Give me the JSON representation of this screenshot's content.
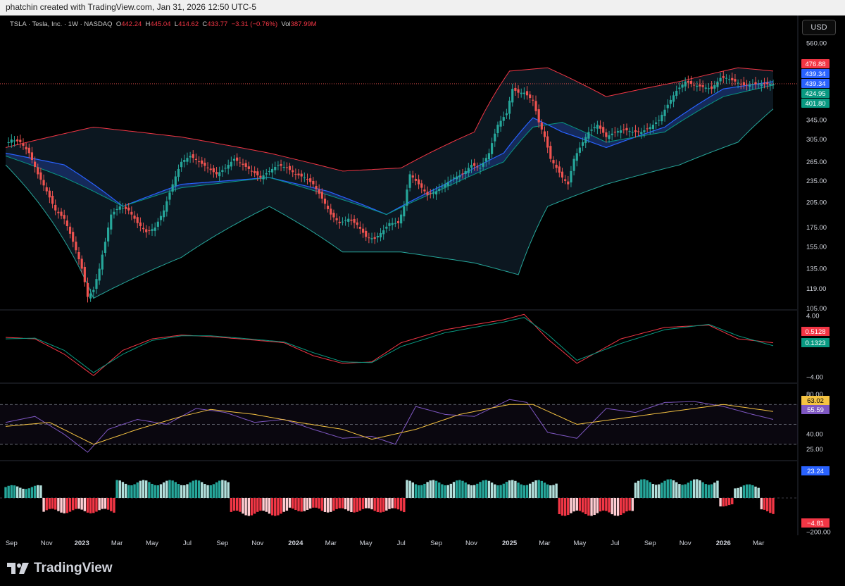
{
  "header": {
    "caption": "phatchin created with TradingView.com, Jan 31, 2026 12:50 UTC-5"
  },
  "legend": {
    "symbol": "TSLA · Tesla, Inc. · 1W · NASDAQ",
    "o_label": "O",
    "o": "442.24",
    "h_label": "H",
    "h": "445.04",
    "l_label": "L",
    "l": "414.62",
    "c_label": "C",
    "c": "433.77",
    "change": "−3.31 (−0.76%)",
    "vol_label": "Vol",
    "vol": "387.99M"
  },
  "currency_button": "USD",
  "footer": {
    "brand": "TradingView"
  },
  "colors": {
    "up": "#26a69a",
    "down": "#ef5350",
    "bb_upper": "#f23645",
    "bb_lower": "#26a69a",
    "fast_ma": "#2962ff",
    "macd": "#f23645",
    "signal": "#089981",
    "rsi": "#7e57c2",
    "rsi_ma": "#f5c342"
  },
  "chart_data": [
    {
      "type": "candlestick",
      "panel": "price",
      "y_scale": "log",
      "ylim": [
        105,
        600
      ],
      "y_ticks": [
        "560.00",
        "345.00",
        "305.00",
        "265.00",
        "235.00",
        "205.00",
        "175.00",
        "155.00",
        "135.00",
        "119.00",
        "105.00"
      ],
      "x_ticks": [
        "Sep",
        "Nov",
        "2023",
        "Mar",
        "May",
        "Jul",
        "Sep",
        "Nov",
        "2024",
        "Mar",
        "May",
        "Jul",
        "Sep",
        "Nov",
        "2025",
        "Mar",
        "May",
        "Jul",
        "Sep",
        "Nov",
        "2026",
        "Mar"
      ],
      "price_labels": [
        {
          "value": "476.88",
          "color": "#f23645"
        },
        {
          "value": "439.34",
          "color": "#2962ff"
        },
        {
          "value": "439.34",
          "color": "#2962ff"
        },
        {
          "value": "424.95",
          "color": "#089981"
        },
        {
          "value": "401.80",
          "color": "#089981"
        }
      ],
      "close_keypoints": [
        [
          0,
          295
        ],
        [
          2,
          305
        ],
        [
          5,
          300
        ],
        [
          8,
          280
        ],
        [
          11,
          245
        ],
        [
          14,
          220
        ],
        [
          17,
          195
        ],
        [
          20,
          185
        ],
        [
          23,
          160
        ],
        [
          26,
          135
        ],
        [
          28,
          113
        ],
        [
          30,
          118
        ],
        [
          32,
          135
        ],
        [
          34,
          160
        ],
        [
          36,
          190
        ],
        [
          39,
          200
        ],
        [
          42,
          195
        ],
        [
          45,
          180
        ],
        [
          48,
          170
        ],
        [
          51,
          175
        ],
        [
          54,
          195
        ],
        [
          57,
          230
        ],
        [
          60,
          265
        ],
        [
          63,
          275
        ],
        [
          66,
          265
        ],
        [
          69,
          255
        ],
        [
          72,
          245
        ],
        [
          75,
          255
        ],
        [
          78,
          270
        ],
        [
          81,
          260
        ],
        [
          84,
          250
        ],
        [
          87,
          240
        ],
        [
          90,
          250
        ],
        [
          93,
          260
        ],
        [
          96,
          255
        ],
        [
          99,
          245
        ],
        [
          102,
          240
        ],
        [
          105,
          230
        ],
        [
          108,
          210
        ],
        [
          111,
          190
        ],
        [
          114,
          180
        ],
        [
          117,
          185
        ],
        [
          120,
          178
        ],
        [
          123,
          165
        ],
        [
          126,
          163
        ],
        [
          129,
          172
        ],
        [
          131,
          180
        ],
        [
          134,
          180
        ],
        [
          136,
          200
        ],
        [
          138,
          245
        ],
        [
          141,
          230
        ],
        [
          144,
          215
        ],
        [
          147,
          220
        ],
        [
          150,
          230
        ],
        [
          153,
          240
        ],
        [
          156,
          245
        ],
        [
          159,
          260
        ],
        [
          162,
          255
        ],
        [
          165,
          280
        ],
        [
          168,
          335
        ],
        [
          171,
          360
        ],
        [
          173,
          420
        ],
        [
          175,
          410
        ],
        [
          177,
          410
        ],
        [
          180,
          390
        ],
        [
          182,
          340
        ],
        [
          184,
          310
        ],
        [
          186,
          270
        ],
        [
          188,
          255
        ],
        [
          190,
          240
        ],
        [
          192,
          230
        ],
        [
          194,
          270
        ],
        [
          196,
          290
        ],
        [
          199,
          320
        ],
        [
          202,
          335
        ],
        [
          205,
          310
        ],
        [
          208,
          320
        ],
        [
          211,
          325
        ],
        [
          214,
          320
        ],
        [
          217,
          320
        ],
        [
          220,
          330
        ],
        [
          223,
          345
        ],
        [
          226,
          380
        ],
        [
          229,
          415
        ],
        [
          232,
          440
        ],
        [
          235,
          430
        ],
        [
          238,
          425
        ],
        [
          241,
          420
        ],
        [
          244,
          450
        ],
        [
          246,
          450
        ],
        [
          249,
          440
        ],
        [
          252,
          430
        ],
        [
          255,
          433
        ]
      ],
      "bollinger_upper_keypoints": [
        [
          0,
          290
        ],
        [
          30,
          330
        ],
        [
          60,
          310
        ],
        [
          90,
          280
        ],
        [
          115,
          250
        ],
        [
          135,
          255
        ],
        [
          160,
          320
        ],
        [
          172,
          470
        ],
        [
          185,
          480
        ],
        [
          205,
          400
        ],
        [
          230,
          440
        ],
        [
          250,
          480
        ],
        [
          262,
          470
        ]
      ],
      "bollinger_lower_keypoints": [
        [
          0,
          260
        ],
        [
          30,
          112
        ],
        [
          60,
          145
        ],
        [
          90,
          200
        ],
        [
          115,
          150
        ],
        [
          135,
          150
        ],
        [
          160,
          140
        ],
        [
          175,
          130
        ],
        [
          185,
          200
        ],
        [
          205,
          230
        ],
        [
          230,
          260
        ],
        [
          250,
          300
        ],
        [
          262,
          370
        ]
      ],
      "fast_ma_keypoints": [
        [
          0,
          280
        ],
        [
          20,
          260
        ],
        [
          40,
          200
        ],
        [
          60,
          230
        ],
        [
          90,
          240
        ],
        [
          110,
          220
        ],
        [
          130,
          190
        ],
        [
          150,
          230
        ],
        [
          170,
          280
        ],
        [
          180,
          350
        ],
        [
          190,
          320
        ],
        [
          205,
          290
        ],
        [
          225,
          330
        ],
        [
          245,
          420
        ],
        [
          262,
          440
        ]
      ],
      "slow_ma_keypoints": [
        [
          0,
          275
        ],
        [
          20,
          240
        ],
        [
          40,
          200
        ],
        [
          60,
          225
        ],
        [
          90,
          240
        ],
        [
          110,
          215
        ],
        [
          130,
          190
        ],
        [
          150,
          225
        ],
        [
          170,
          265
        ],
        [
          180,
          330
        ],
        [
          190,
          340
        ],
        [
          205,
          300
        ],
        [
          225,
          320
        ],
        [
          245,
          400
        ],
        [
          262,
          430
        ]
      ]
    },
    {
      "type": "line",
      "panel": "macd",
      "ylim": [
        -4.6,
        4.6
      ],
      "y_ticks": [
        "4.00",
        "−4.00"
      ],
      "series": [
        {
          "name": "MACD",
          "color": "#f23645",
          "keypoints": [
            [
              0,
              1.2
            ],
            [
              10,
              1.0
            ],
            [
              20,
              -1.0
            ],
            [
              30,
              -3.8
            ],
            [
              40,
              -0.5
            ],
            [
              50,
              1.0
            ],
            [
              60,
              1.5
            ],
            [
              70,
              1.3
            ],
            [
              80,
              1.0
            ],
            [
              95,
              0.5
            ],
            [
              105,
              -1.2
            ],
            [
              115,
              -2.2
            ],
            [
              125,
              -2.0
            ],
            [
              135,
              0.5
            ],
            [
              150,
              2.2
            ],
            [
              170,
              3.5
            ],
            [
              177,
              4.2
            ],
            [
              185,
              1.0
            ],
            [
              195,
              -2.2
            ],
            [
              210,
              1.0
            ],
            [
              225,
              2.5
            ],
            [
              240,
              2.8
            ],
            [
              250,
              1.0
            ],
            [
              262,
              0.5
            ]
          ]
        },
        {
          "name": "Signal",
          "color": "#089981",
          "keypoints": [
            [
              0,
              1.0
            ],
            [
              10,
              1.1
            ],
            [
              20,
              -0.5
            ],
            [
              30,
              -3.4
            ],
            [
              40,
              -1.0
            ],
            [
              50,
              0.8
            ],
            [
              60,
              1.4
            ],
            [
              70,
              1.4
            ],
            [
              80,
              1.1
            ],
            [
              95,
              0.6
            ],
            [
              105,
              -0.8
            ],
            [
              115,
              -2.0
            ],
            [
              125,
              -2.1
            ],
            [
              135,
              0.0
            ],
            [
              150,
              1.8
            ],
            [
              170,
              3.2
            ],
            [
              177,
              3.8
            ],
            [
              185,
              1.6
            ],
            [
              195,
              -1.8
            ],
            [
              210,
              0.4
            ],
            [
              225,
              2.2
            ],
            [
              240,
              2.9
            ],
            [
              250,
              1.4
            ],
            [
              262,
              0.1
            ]
          ]
        }
      ],
      "labels": [
        {
          "value": "0.5128",
          "color": "#f23645"
        },
        {
          "value": "0.1323",
          "color": "#089981"
        }
      ]
    },
    {
      "type": "line",
      "panel": "rsi",
      "ylim": [
        15,
        90
      ],
      "y_ticks": [
        "80.00",
        "40.00",
        "25.00"
      ],
      "guides": [
        70,
        50,
        30
      ],
      "series": [
        {
          "name": "RSI",
          "color": "#7e57c2",
          "keypoints": [
            [
              0,
              52
            ],
            [
              10,
              58
            ],
            [
              20,
              40
            ],
            [
              28,
              22
            ],
            [
              35,
              45
            ],
            [
              45,
              55
            ],
            [
              55,
              50
            ],
            [
              65,
              66
            ],
            [
              75,
              62
            ],
            [
              85,
              52
            ],
            [
              95,
              55
            ],
            [
              105,
              45
            ],
            [
              115,
              36
            ],
            [
              125,
              38
            ],
            [
              133,
              30
            ],
            [
              140,
              68
            ],
            [
              150,
              60
            ],
            [
              160,
              58
            ],
            [
              172,
              75
            ],
            [
              178,
              72
            ],
            [
              185,
              42
            ],
            [
              195,
              36
            ],
            [
              205,
              66
            ],
            [
              215,
              62
            ],
            [
              225,
              72
            ],
            [
              235,
              73
            ],
            [
              245,
              68
            ],
            [
              255,
              60
            ],
            [
              262,
              55
            ]
          ]
        },
        {
          "name": "RSI MA",
          "color": "#f5c342",
          "keypoints": [
            [
              0,
              48
            ],
            [
              15,
              52
            ],
            [
              30,
              30
            ],
            [
              45,
              45
            ],
            [
              60,
              58
            ],
            [
              70,
              65
            ],
            [
              85,
              60
            ],
            [
              100,
              52
            ],
            [
              115,
              45
            ],
            [
              125,
              35
            ],
            [
              140,
              45
            ],
            [
              155,
              60
            ],
            [
              172,
              70
            ],
            [
              180,
              70
            ],
            [
              195,
              50
            ],
            [
              210,
              56
            ],
            [
              225,
              62
            ],
            [
              245,
              70
            ],
            [
              262,
              63
            ]
          ]
        }
      ],
      "labels": [
        {
          "value": "63.02",
          "color": "#f5c342"
        },
        {
          "value": "55.59",
          "color": "#7e57c2"
        }
      ]
    },
    {
      "type": "bar",
      "panel": "oscillator",
      "ylim": [
        -210,
        210
      ],
      "y_ticks": [
        "−200.00"
      ],
      "labels": [
        {
          "value": "23.24",
          "color": "#2962ff"
        },
        {
          "value": "−4.81",
          "color": "#f23645"
        }
      ],
      "segments": [
        [
          0,
          12,
          75
        ],
        [
          13,
          37,
          -90
        ],
        [
          38,
          76,
          105
        ],
        [
          77,
          96,
          -105
        ],
        [
          97,
          107,
          -80
        ],
        [
          108,
          136,
          -85
        ],
        [
          137,
          188,
          105
        ],
        [
          189,
          214,
          -105
        ],
        [
          215,
          243,
          110
        ],
        [
          244,
          248,
          -50
        ],
        [
          249,
          257,
          80
        ],
        [
          258,
          262,
          -95
        ]
      ]
    }
  ]
}
